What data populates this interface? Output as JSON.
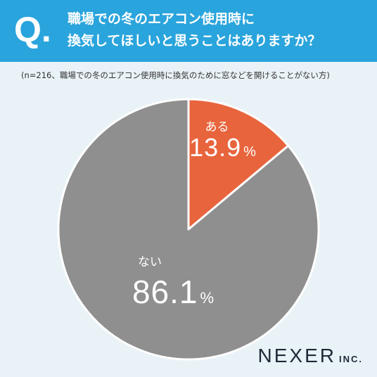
{
  "header": {
    "q_mark": "Q.",
    "title_line1": "職場での冬のエアコン使用時に",
    "title_line2": "換気してほしいと思うことはありますか？"
  },
  "note": "(n=216、職場での冬のエアコン使用時に換気のために窓などを開けることがない方)",
  "brand": {
    "name": "NEXER",
    "suffix": "INC."
  },
  "colors": {
    "header": "#2aa4dc",
    "yes": "#e8643c",
    "no": "#8f8f8f",
    "background": "#e9f2f7"
  },
  "chart_data": {
    "type": "pie",
    "title": "",
    "unit": "%",
    "slices": [
      {
        "label": "ある",
        "value": 13.9,
        "display": "13.9",
        "color": "#e8643c"
      },
      {
        "label": "ない",
        "value": 86.1,
        "display": "86.1",
        "color": "#8f8f8f"
      }
    ]
  }
}
